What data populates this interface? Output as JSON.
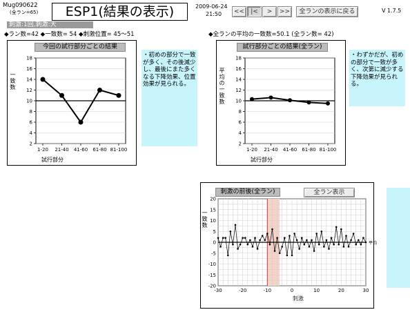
{
  "header": {
    "session_id": "Mug090622",
    "session_sub": "(全ラン=65)",
    "title": "ESP1(結果の表示)",
    "date": "2009-06-24",
    "time": "21:50",
    "version": "V 1.7.5"
  },
  "nav": {
    "buttons": [
      {
        "label": "<<",
        "icon": "double-chevron-left-icon"
      },
      {
        "label": "|<",
        "icon": "first-page-icon"
      },
      {
        "label": ">",
        "icon": "chevron-right-icon"
      },
      {
        "label": ">>",
        "icon": "double-chevron-right-icon"
      }
    ],
    "all_runs_button": "全ランの表示に戻る"
  },
  "info": {
    "badge": "刺激:1回,刺激:大",
    "left_stats": "◆ラン数=42 ◆一致数= 54 ◆刺激位置= 45～51",
    "right_stats": "◆全ランの平均の一致数=50.1 (全ラン数= 42)"
  },
  "charts": {
    "left": {
      "header": "今回の試行部分ごとの結果",
      "ylabel": "一致数",
      "xlabel": "試行部分",
      "note": "・初めの部分で一致が多く、その後減少し、最後にまた多くなる下降効果、位置効果が見られる。"
    },
    "right": {
      "header": "試行部分ごとの結果(全ラン)",
      "ylabel": "平均の一致数",
      "xlabel": "試行部分",
      "note": "・わずかだが、初めの部分で一致が多く、次第に減少する下降効果が見られる。"
    },
    "bottom": {
      "header": "刺激の前後(全ラン)",
      "button": "全ラン表示",
      "ylabel": "一致数",
      "xlabel": "刺激",
      "avg_label": "平均"
    }
  },
  "chart_data": [
    {
      "type": "line",
      "categories": [
        "1-20",
        "21-40",
        "41-60",
        "61-80",
        "81-100"
      ],
      "values": [
        14,
        11,
        6,
        12,
        11
      ],
      "reference": 10,
      "ylim": [
        2,
        18
      ],
      "yticks": [
        2,
        4,
        6,
        8,
        10,
        12,
        14,
        16,
        18
      ]
    },
    {
      "type": "line",
      "categories": [
        "1-20",
        "21-40",
        "41-60",
        "61-80",
        "81-100"
      ],
      "values": [
        10.3,
        10.6,
        10.1,
        9.7,
        9.5
      ],
      "reference": 10,
      "ylim": [
        2,
        18
      ],
      "yticks": [
        2,
        4,
        6,
        8,
        10,
        12,
        14,
        16,
        18
      ]
    },
    {
      "type": "line",
      "xlim": [
        -30,
        30
      ],
      "ylim": [
        -20,
        20
      ],
      "xticks": [
        -30,
        -20,
        -10,
        0,
        10,
        20,
        30
      ],
      "yticks": [
        -20,
        -15,
        -10,
        -5,
        0,
        5,
        10,
        15,
        20
      ],
      "stimulus_band": [
        -10,
        -5
      ],
      "x": [
        -30,
        -29,
        -28,
        -27,
        -26,
        -25,
        -24,
        -23,
        -22,
        -21,
        -20,
        -19,
        -18,
        -17,
        -16,
        -15,
        -14,
        -13,
        -12,
        -11,
        -10,
        -9,
        -8,
        -7,
        -6,
        -5,
        -4,
        -3,
        -2,
        -1,
        0,
        1,
        2,
        3,
        4,
        5,
        6,
        7,
        8,
        9,
        10,
        11,
        12,
        13,
        14,
        15,
        16,
        17,
        18,
        19,
        20,
        21,
        22,
        23,
        24,
        25,
        26,
        27,
        28,
        29,
        30
      ],
      "values": [
        2,
        -2,
        2,
        2,
        -6,
        5,
        -1,
        8,
        -3,
        -1,
        2,
        2,
        -1,
        1,
        -2,
        2,
        -3,
        1,
        3,
        1,
        4,
        -1,
        6,
        -4,
        2,
        -5,
        -2,
        2,
        -6,
        3,
        -6,
        4,
        1,
        -3,
        2,
        -1,
        1,
        -2,
        1,
        -4,
        4,
        -1,
        5,
        -2,
        1,
        -3,
        2,
        -1,
        7,
        -1,
        6,
        -2,
        3,
        -2,
        1,
        4,
        -1,
        1,
        -1,
        2,
        0
      ]
    }
  ]
}
